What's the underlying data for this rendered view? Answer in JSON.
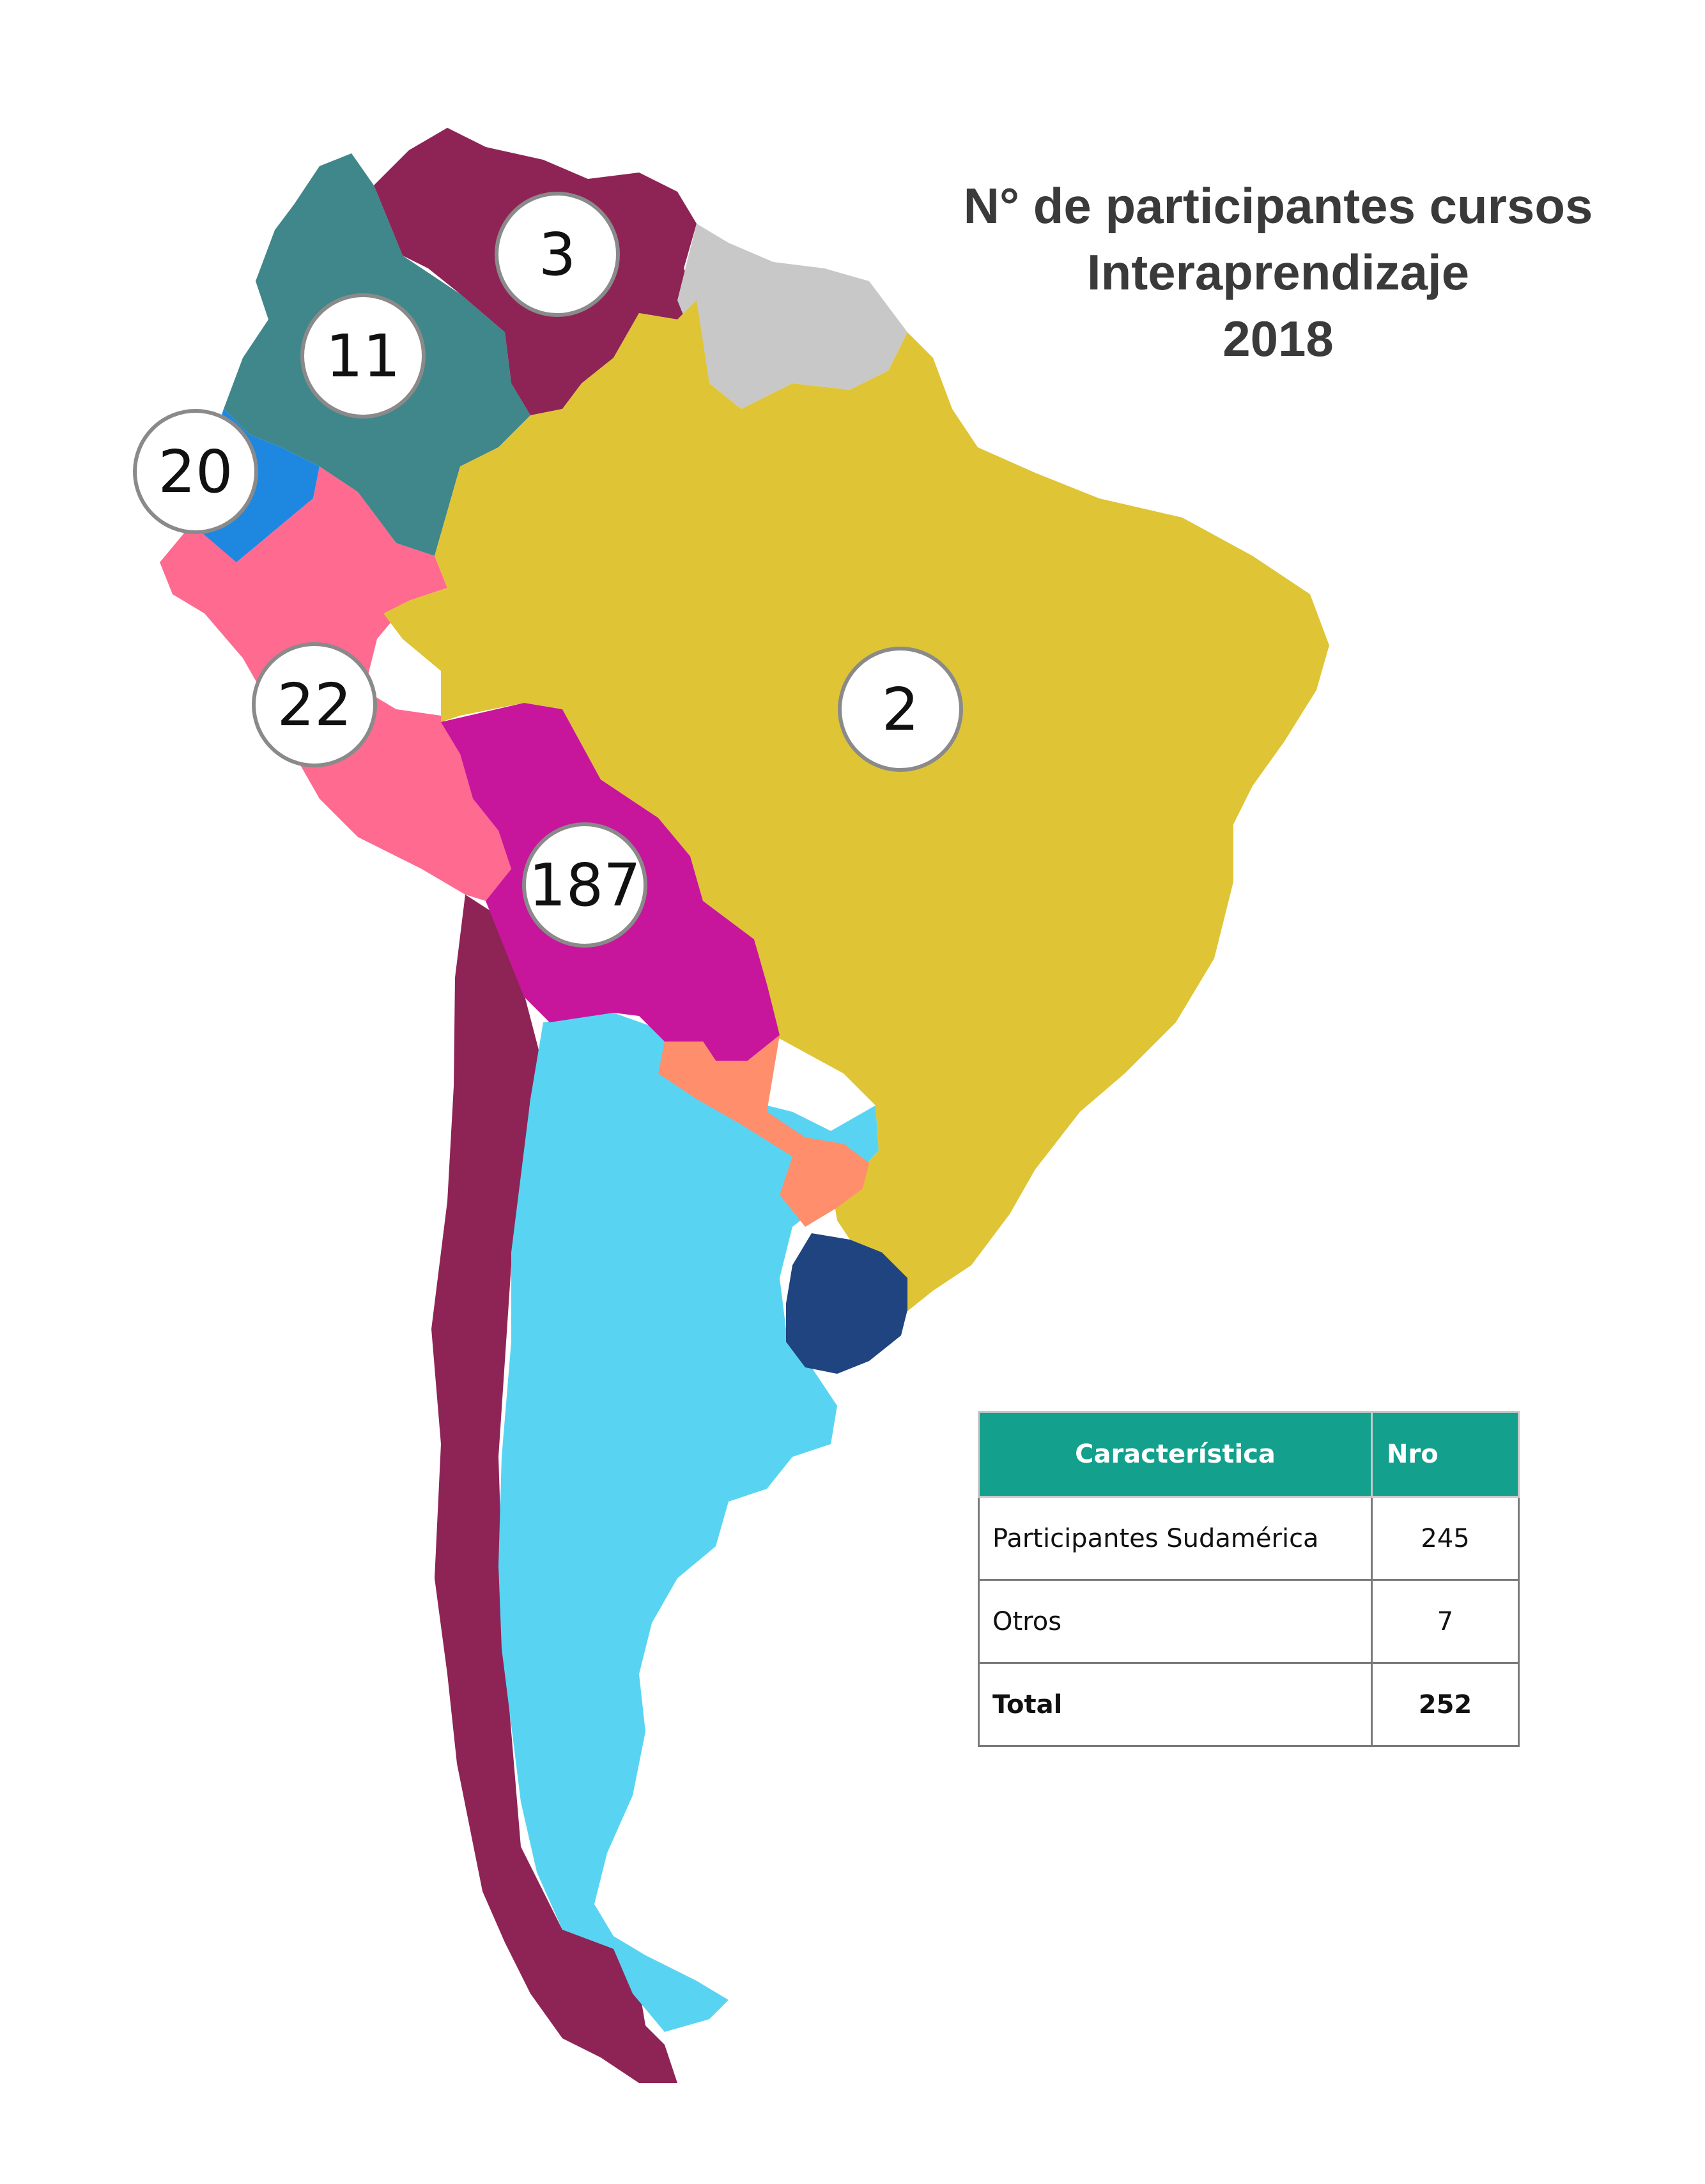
{
  "title": {
    "line1": "N° de participantes cursos",
    "line2": "Interaprendizaje",
    "line3": "2018"
  },
  "colors": {
    "venezuela": "#8e2456",
    "colombia": "#3f878a",
    "ecuador": "#1e88e0",
    "peru": "#ff6a91",
    "brazil": "#dfc436",
    "bolivia": "#c7169c",
    "chile": "#8e2456",
    "argentina": "#58d4f2",
    "paraguay": "#ff8e6c",
    "uruguay": "#1f4480",
    "guianas": "#c8c8c8",
    "table_header": "#13a08c"
  },
  "bubbles": {
    "venezuela": "3",
    "colombia": "11",
    "ecuador": "20",
    "peru": "22",
    "brazil": "2",
    "bolivia": "187"
  },
  "table": {
    "headers": [
      "Característica",
      "Nro"
    ],
    "rows": [
      {
        "label": "Participantes Sudamérica",
        "value": "245"
      },
      {
        "label": "Otros",
        "value": "7"
      }
    ],
    "total": {
      "label": "Total",
      "value": "252"
    }
  }
}
